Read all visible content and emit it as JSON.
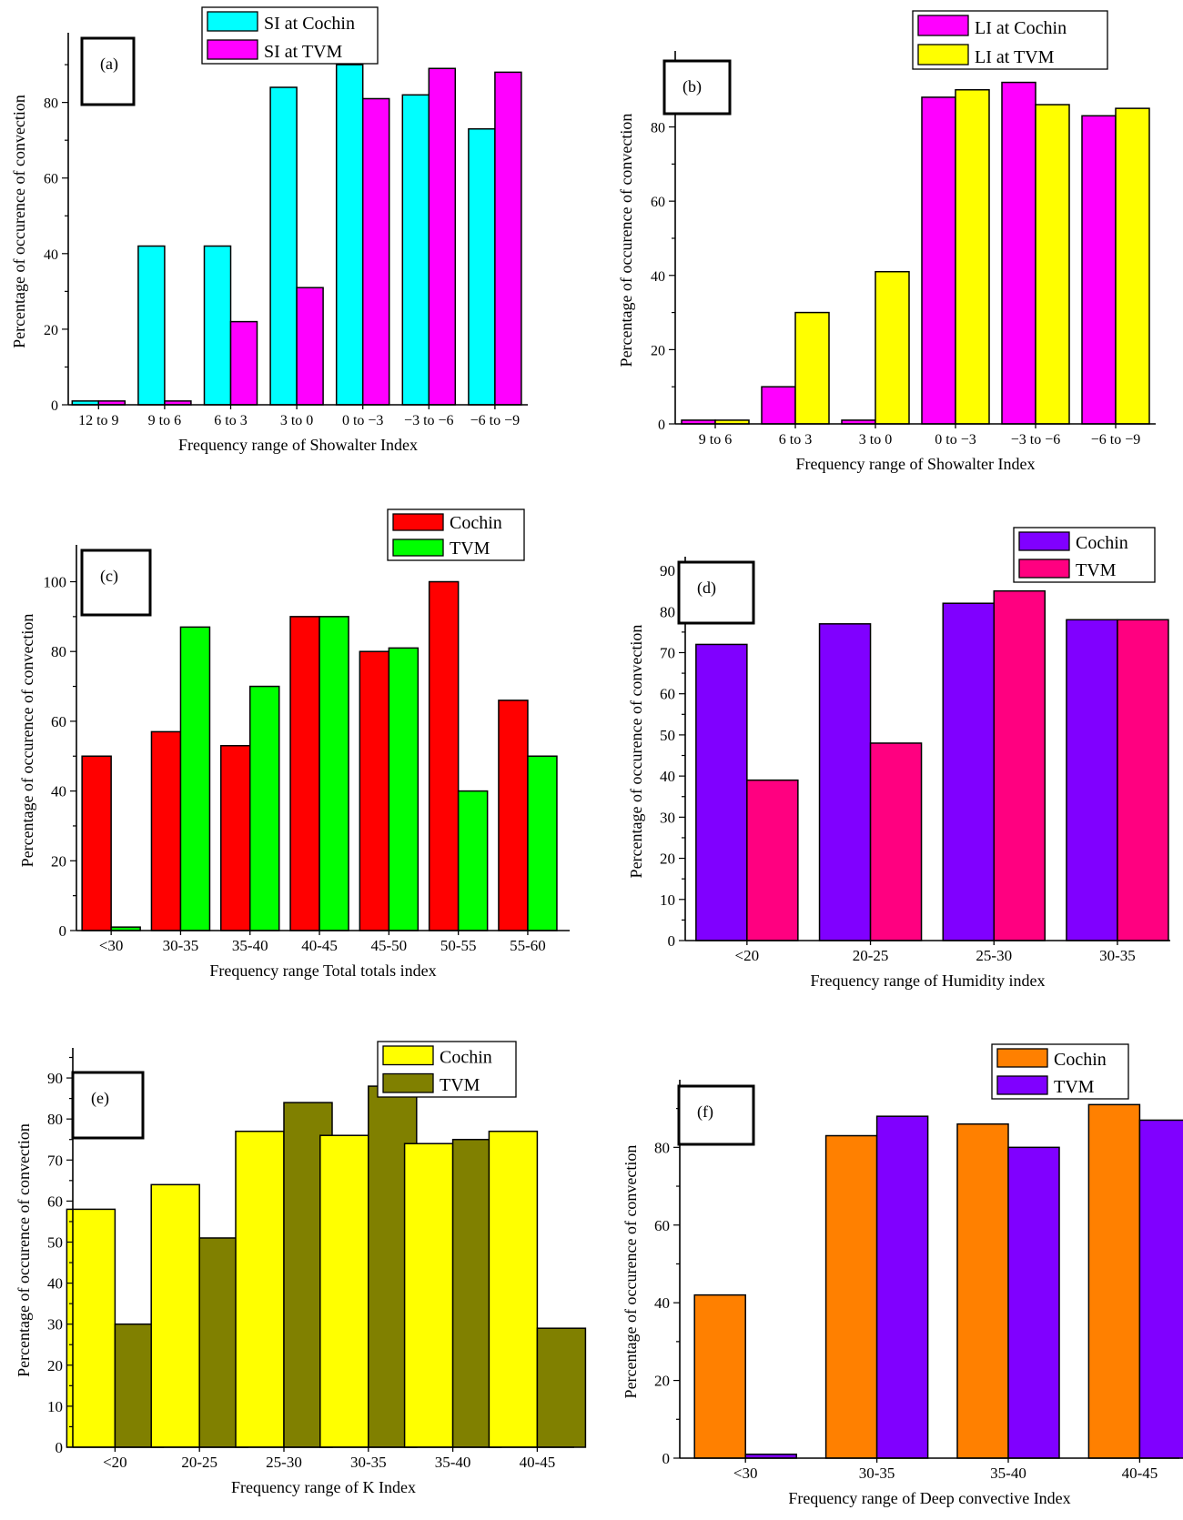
{
  "chart_data": [
    {
      "type": "bar",
      "panel_label": "(a)",
      "xlabel": "Frequency range of Showalter Index",
      "ylabel": "Percentage of occurence of convection",
      "categories": [
        "12  to 9",
        "9  to 6",
        "6  to 3",
        "3  to 0",
        "0 to −3",
        "−3  to −6",
        "−6  to −9"
      ],
      "yticks": [
        0,
        20,
        40,
        60,
        80
      ],
      "ylim": [
        0,
        97
      ],
      "legend_position": "top-center",
      "series": [
        {
          "name": "SI at Cochin",
          "color": "#00FFFF",
          "values": [
            1,
            42,
            42,
            84,
            90,
            82,
            73
          ]
        },
        {
          "name": "SI at TVM",
          "color": "#FF00FF",
          "values": [
            1,
            1,
            22,
            31,
            81,
            89,
            88
          ]
        }
      ]
    },
    {
      "type": "bar",
      "panel_label": "(b)",
      "xlabel": "Frequency range of Showalter Index",
      "ylabel": "Percentage of occurence of convection",
      "categories": [
        "9  to 6",
        "6  to 3",
        "3  to 0",
        "0 to −3",
        "−3  to −6",
        "−6  to −9"
      ],
      "yticks": [
        0,
        20,
        40,
        60,
        80
      ],
      "ylim": [
        0,
        99
      ],
      "legend_position": "top-center",
      "series": [
        {
          "name": "LI at Cochin",
          "color": "#FF00FF",
          "values": [
            1,
            10,
            1,
            88,
            92,
            83
          ]
        },
        {
          "name": "LI at TVM",
          "color": "#FFFF00",
          "values": [
            1,
            30,
            41,
            90,
            86,
            85
          ]
        }
      ]
    },
    {
      "type": "bar",
      "panel_label": "(c)",
      "xlabel": "Frequency range Total totals index",
      "ylabel": "Percentage of occurence of convection",
      "categories": [
        "<30",
        "30-35",
        "35-40",
        "40-45",
        "45-50",
        "50-55",
        "55-60"
      ],
      "yticks": [
        0,
        20,
        40,
        60,
        80,
        100
      ],
      "ylim": [
        0,
        109
      ],
      "legend_position": "top-right",
      "series": [
        {
          "name": "Cochin",
          "color": "#FF0000",
          "values": [
            50,
            57,
            53,
            90,
            80,
            100,
            66
          ]
        },
        {
          "name": "TVM",
          "color": "#00FF00",
          "values": [
            1,
            87,
            70,
            90,
            81,
            40,
            50
          ]
        }
      ]
    },
    {
      "type": "bar",
      "panel_label": "(d)",
      "xlabel": "Frequency range of Humidity index",
      "ylabel": "Percentage of occurence of convection",
      "categories": [
        "<20",
        "20-25",
        "25-30",
        "30-35"
      ],
      "yticks": [
        0,
        10,
        20,
        30,
        40,
        50,
        60,
        70,
        80,
        90
      ],
      "ylim": [
        0,
        92
      ],
      "legend_position": "top-right",
      "series": [
        {
          "name": "Cochin",
          "color": "#8000FF",
          "values": [
            72,
            77,
            82,
            78
          ]
        },
        {
          "name": "TVM",
          "color": "#FF0080",
          "values": [
            39,
            48,
            85,
            78
          ]
        }
      ]
    },
    {
      "type": "bar",
      "panel_label": "(e)",
      "xlabel": "Frequency range of K Index",
      "ylabel": "Percentage of occurence of convection",
      "categories": [
        "<20",
        "20-25",
        "25-30",
        "30-35",
        "35-40",
        "40-45"
      ],
      "yticks": [
        0,
        10,
        20,
        30,
        40,
        50,
        60,
        70,
        80,
        90
      ],
      "ylim": [
        0,
        96
      ],
      "legend_position": "top-right",
      "series": [
        {
          "name": "Cochin",
          "color": "#FFFF00",
          "values": [
            58,
            64,
            77,
            76,
            74,
            77
          ]
        },
        {
          "name": "TVM",
          "color": "#808000",
          "values": [
            30,
            51,
            84,
            88,
            75,
            29
          ]
        }
      ]
    },
    {
      "type": "bar",
      "panel_label": "(f)",
      "xlabel": "Frequency range of Deep convective Index",
      "ylabel": "Percentage of occurence of convection",
      "categories": [
        "<30",
        "30-35",
        "35-40",
        "40-45"
      ],
      "yticks": [
        0,
        20,
        40,
        60,
        80
      ],
      "ylim": [
        0,
        96
      ],
      "legend_position": "top-right",
      "series": [
        {
          "name": "Cochin",
          "color": "#FF8000",
          "values": [
            42,
            83,
            86,
            91
          ]
        },
        {
          "name": "TVM",
          "color": "#8000FF",
          "values": [
            1,
            88,
            80,
            87
          ]
        }
      ]
    }
  ]
}
